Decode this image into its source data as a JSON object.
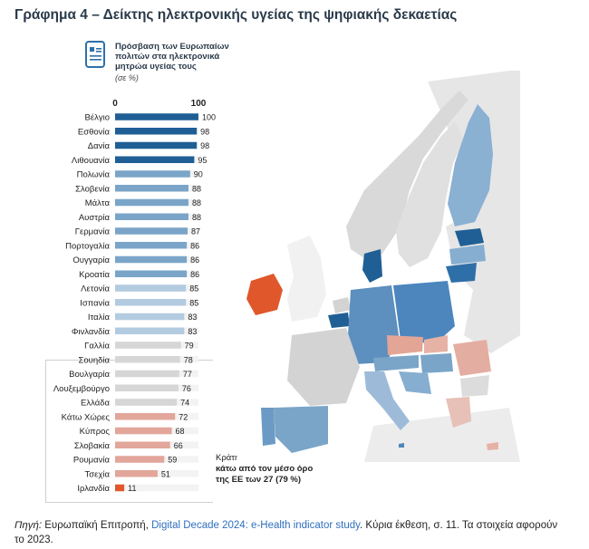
{
  "header": {
    "title": "Γράφημα 4 – Δείκτης ηλεκτρονικής υγείας της ψηφιακής δεκαετίας"
  },
  "legend": {
    "title": "Πρόσβαση των Ευρωπαίων πολιτών στα ηλεκτρονικά μητρώα υγείας τους",
    "unit": "(σε %)"
  },
  "below_note": {
    "line1": "Κράτη μέλη",
    "line2": "κάτω από τον μέσο όρο",
    "line3": "της ΕΕ των 27 (79 %)"
  },
  "source": {
    "prefix": "Πηγή:",
    "publisher": " Ευρωπαϊκή Επιτροπή, ",
    "link": "Digital Decade 2024: e-Health indicator study",
    "suffix": ". Κύρια έκθεση, σ. 11. Τα στοιχεία αφορούν το 2023."
  },
  "colors": {
    "high": "#1f5f95",
    "mid": "#7aa5c8",
    "low_blue": "#b3cbe0",
    "gray": "#d6d6d6",
    "low_red": "#e2a69a",
    "worst": "#e0572b"
  },
  "chart_data": {
    "type": "bar",
    "orientation": "horizontal",
    "xlim": [
      0,
      100
    ],
    "xticks": [
      "0",
      "100"
    ],
    "eu_average": 79,
    "categories": [
      "Βέλγιο",
      "Εσθονία",
      "Δανία",
      "Λιθουανία",
      "Πολωνία",
      "Σλοβενία",
      "Μάλτα",
      "Αυστρία",
      "Γερμανία",
      "Πορτογαλία",
      "Ουγγαρία",
      "Κροατία",
      "Λετονία",
      "Ισπανία",
      "Ιταλία",
      "Φινλανδία",
      "Γαλλία",
      "Σουηδία",
      "Βουλγαρία",
      "Λουξεμβούργο",
      "Ελλάδα",
      "Κάτω Χώρες",
      "Κύπρος",
      "Σλοβακία",
      "Ρουμανία",
      "Τσεχία",
      "Ιρλανδία"
    ],
    "values": [
      100,
      98,
      98,
      95,
      90,
      88,
      88,
      88,
      87,
      86,
      86,
      86,
      85,
      85,
      83,
      83,
      79,
      78,
      77,
      76,
      74,
      72,
      68,
      66,
      59,
      51,
      11
    ]
  }
}
